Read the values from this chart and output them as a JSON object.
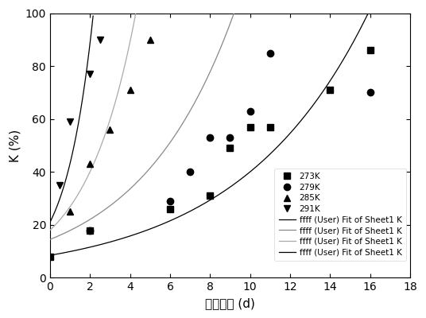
{
  "series": [
    {
      "label": "273K",
      "marker": "s",
      "color": "#000000",
      "x": [
        0,
        2,
        6,
        8,
        9,
        10,
        11,
        14,
        16
      ],
      "y": [
        8,
        18,
        26,
        31,
        49,
        57,
        57,
        71,
        86
      ]
    },
    {
      "label": "279K",
      "marker": "o",
      "color": "#000000",
      "x": [
        2,
        6,
        7,
        8,
        9,
        10,
        11,
        16
      ],
      "y": [
        18,
        29,
        40,
        53,
        53,
        63,
        85,
        70
      ]
    },
    {
      "label": "285K",
      "marker": "^",
      "color": "#000000",
      "x": [
        1,
        2,
        3,
        4,
        5
      ],
      "y": [
        25,
        43,
        56,
        71,
        90
      ]
    },
    {
      "label": "291K",
      "marker": "v",
      "color": "#000000",
      "x": [
        0.5,
        1,
        2,
        2.5
      ],
      "y": [
        35,
        59,
        77,
        90
      ]
    }
  ],
  "fit_curves": [
    {
      "label": "ffff (User) Fit of Sheet1 K",
      "color": "#000000",
      "lw": 0.9,
      "a": 8.5,
      "b": 0.155
    },
    {
      "label": "ffff (User) Fit of Sheet1 K",
      "color": "#888888",
      "lw": 0.9,
      "a": 14.5,
      "b": 0.21
    },
    {
      "label": "ffff (User) Fit of Sheet1 K",
      "color": "#aaaaaa",
      "lw": 0.9,
      "a": 18.0,
      "b": 0.4
    },
    {
      "label": "ffff (User) Fit of Sheet1 K",
      "color": "#000000",
      "lw": 0.9,
      "a": 21.0,
      "b": 0.72
    }
  ],
  "xlabel": "贯藏时间 (d)",
  "ylabel": "K (%)",
  "xlim": [
    0,
    18
  ],
  "ylim": [
    0,
    100
  ],
  "xticks": [
    0,
    2,
    4,
    6,
    8,
    10,
    12,
    14,
    16,
    18
  ],
  "yticks": [
    0,
    20,
    40,
    60,
    80,
    100
  ],
  "figsize": [
    5.36,
    4.0
  ],
  "dpi": 100
}
